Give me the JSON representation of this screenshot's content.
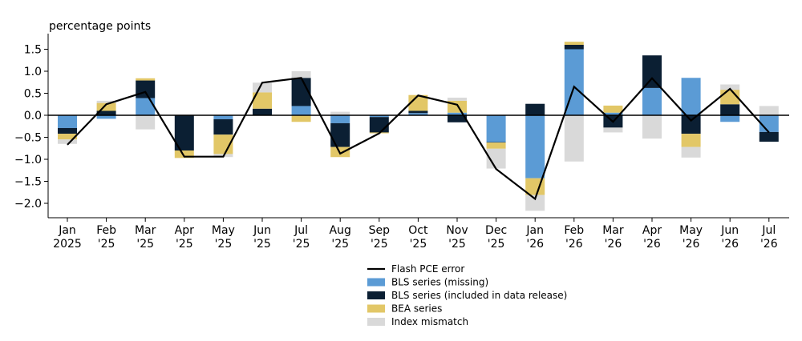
{
  "chart_data": {
    "type": "bar",
    "ylabel": "percentage points",
    "ylim": [
      -2.35,
      1.85
    ],
    "yticks": [
      "1.5",
      "1.0",
      "0.5",
      "0.0",
      "−0.5",
      "−1.0",
      "−1.5",
      "−2.0"
    ],
    "ytick_values": [
      1.5,
      1.0,
      0.5,
      0.0,
      -0.5,
      -1.0,
      -1.5,
      -2.0
    ],
    "categories": [
      {
        "line1": "Jan",
        "line2": "2025"
      },
      {
        "line1": "Feb",
        "line2": "'25"
      },
      {
        "line1": "Mar",
        "line2": "'25"
      },
      {
        "line1": "Apr",
        "line2": "'25"
      },
      {
        "line1": "May",
        "line2": "'25"
      },
      {
        "line1": "Jun",
        "line2": "'25"
      },
      {
        "line1": "Jul",
        "line2": "'25"
      },
      {
        "line1": "Aug",
        "line2": "'25"
      },
      {
        "line1": "Sep",
        "line2": "'25"
      },
      {
        "line1": "Oct",
        "line2": "'25"
      },
      {
        "line1": "Nov",
        "line2": "'25"
      },
      {
        "line1": "Dec",
        "line2": "'25"
      },
      {
        "line1": "Jan",
        "line2": "'26"
      },
      {
        "line1": "Feb",
        "line2": "'26"
      },
      {
        "line1": "Mar",
        "line2": "'26"
      },
      {
        "line1": "Apr",
        "line2": "'26"
      },
      {
        "line1": "May",
        "line2": "'26"
      },
      {
        "line1": "Jun",
        "line2": "'26"
      },
      {
        "line1": "Jul",
        "line2": "'26"
      }
    ],
    "series": [
      {
        "name": "BLS series (missing)",
        "color": "#5b9bd5",
        "values": [
          -0.29,
          -0.08,
          0.39,
          0.0,
          -0.09,
          0.0,
          0.21,
          -0.18,
          -0.04,
          0.05,
          0.06,
          -0.61,
          -1.43,
          1.5,
          0.06,
          0.62,
          0.85,
          -0.15,
          -0.38
        ]
      },
      {
        "name": "BLS series (included in data release)",
        "color": "#0b1f33",
        "values": [
          -0.13,
          0.1,
          0.4,
          -0.8,
          -0.35,
          0.15,
          0.64,
          -0.54,
          -0.35,
          0.05,
          -0.16,
          -0.01,
          0.26,
          0.1,
          -0.28,
          0.74,
          -0.42,
          0.25,
          -0.22
        ]
      },
      {
        "name": "BEA series",
        "color": "#e2c767",
        "values": [
          -0.13,
          0.18,
          0.05,
          -0.17,
          -0.44,
          0.37,
          -0.15,
          -0.23,
          -0.02,
          0.36,
          0.27,
          -0.14,
          -0.38,
          0.07,
          0.16,
          0.0,
          -0.3,
          0.33,
          0.0
        ]
      },
      {
        "name": "Index mismatch",
        "color": "#d9d9d9",
        "values": [
          -0.1,
          0.05,
          -0.32,
          0.0,
          -0.07,
          0.22,
          0.15,
          0.08,
          0.0,
          0.0,
          0.07,
          -0.45,
          -0.36,
          -1.05,
          -0.11,
          -0.53,
          -0.24,
          0.12,
          0.21
        ]
      }
    ],
    "line": {
      "name": "Flash PCE error",
      "color": "#000000",
      "values": [
        -0.67,
        0.25,
        0.53,
        -0.94,
        -0.94,
        0.74,
        0.85,
        -0.87,
        -0.41,
        0.45,
        0.24,
        -1.22,
        -1.9,
        0.65,
        -0.15,
        0.84,
        -0.12,
        0.6,
        -0.39
      ]
    },
    "legend": {
      "position": "bottom-center",
      "items": [
        {
          "label": "Flash PCE error",
          "kind": "line",
          "color": "#000000"
        },
        {
          "label": "BLS series (missing)",
          "kind": "box",
          "color": "#5b9bd5"
        },
        {
          "label": "BLS series (included in data release)",
          "kind": "box",
          "color": "#0b1f33"
        },
        {
          "label": "BEA series",
          "kind": "box",
          "color": "#e2c767"
        },
        {
          "label": "Index mismatch",
          "kind": "box",
          "color": "#d9d9d9"
        }
      ]
    },
    "grid": false
  }
}
